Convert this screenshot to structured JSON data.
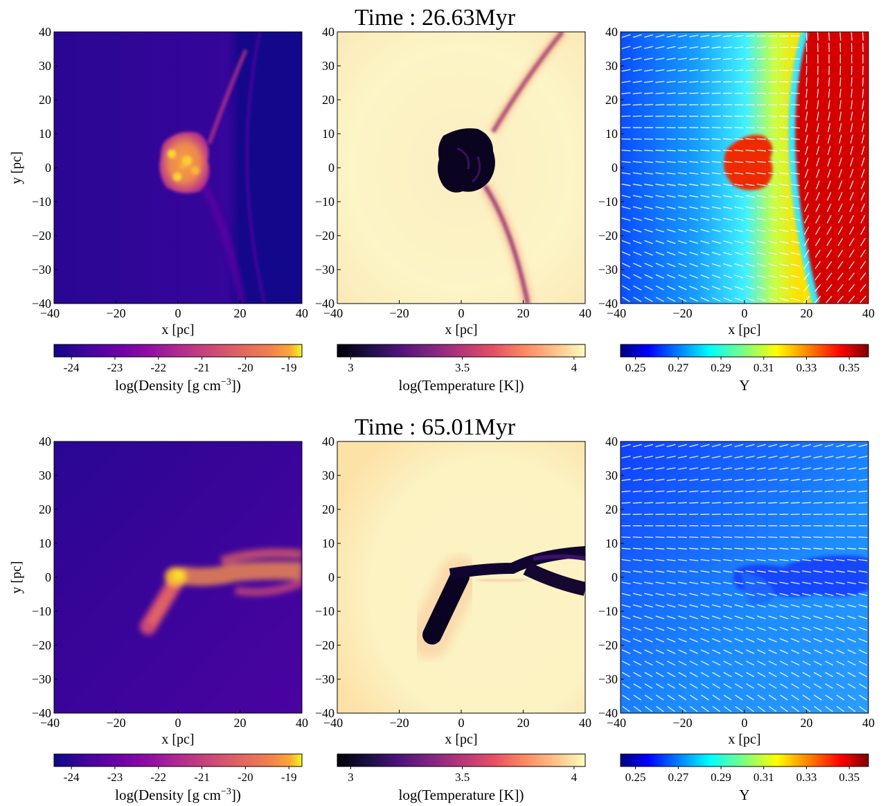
{
  "figure": {
    "rows": [
      {
        "title": "Time : 26.63Myr"
      },
      {
        "title": "Time : 65.01Myr"
      }
    ],
    "panel_axes": {
      "xlabel": "x [pc]",
      "ylabel": "y [pc]",
      "xlim": [
        -40,
        40
      ],
      "ylim": [
        -40,
        40
      ],
      "xticks": [
        -40,
        -20,
        0,
        20,
        40
      ],
      "yticks": [
        -40,
        -30,
        -20,
        -10,
        0,
        10,
        20,
        30,
        40
      ]
    },
    "colorbars": [
      {
        "label": "log(Density [g cm",
        "label_sup": "−3",
        "label_end": "])",
        "ticks": [
          "-24",
          "-23",
          "-22",
          "-21",
          "-20",
          "-19"
        ],
        "range": [
          -24.4,
          -18.7
        ],
        "tick_values": [
          -24,
          -23,
          -22,
          -21,
          -20,
          -19
        ],
        "colormap": "plasma"
      },
      {
        "label": "log(Temperature [K])",
        "label_sup": "",
        "label_end": "",
        "ticks": [
          "3",
          "3.5",
          "4"
        ],
        "range": [
          2.94,
          4.05
        ],
        "tick_values": [
          3,
          3.5,
          4
        ],
        "colormap": "magma"
      },
      {
        "label": "Y",
        "label_sup": "",
        "label_end": "",
        "ticks": [
          "0.25",
          "0.27",
          "0.29",
          "0.31",
          "0.33",
          "0.35"
        ],
        "range": [
          0.243,
          0.359
        ],
        "tick_values": [
          0.25,
          0.27,
          0.29,
          0.31,
          0.33,
          0.35
        ],
        "colormap": "jet"
      }
    ]
  },
  "chart_data": [
    {
      "type": "heatmap",
      "row": 0,
      "panel": "density",
      "title": "Time : 26.63Myr",
      "xlabel": "x [pc]",
      "ylabel": "y [pc]",
      "xlim": [
        -40,
        40
      ],
      "ylim": [
        -40,
        40
      ],
      "colorbar_label": "log(Density [g cm^-3])",
      "colorbar_range": [
        -24.4,
        -18.7
      ],
      "features": {
        "background_value": -23.8,
        "clump_center_pc": [
          3,
          0
        ],
        "clump_radius_pc": 13,
        "clump_peak_value": -19.2
      }
    },
    {
      "type": "heatmap",
      "row": 0,
      "panel": "temperature",
      "title": "Time : 26.63Myr",
      "xlabel": "x [pc]",
      "ylabel": "",
      "xlim": [
        -40,
        40
      ],
      "ylim": [
        -40,
        40
      ],
      "colorbar_label": "log(Temperature [K])",
      "colorbar_range": [
        2.94,
        4.05
      ],
      "features": {
        "background_value": 4.02,
        "clump_value": 2.96
      }
    },
    {
      "type": "heatmap",
      "row": 0,
      "panel": "helium_Y",
      "title": "Time : 26.63Myr",
      "xlabel": "x [pc]",
      "ylabel": "",
      "xlim": [
        -40,
        40
      ],
      "ylim": [
        -40,
        40
      ],
      "colorbar_label": "Y",
      "colorbar_range": [
        0.243,
        0.359
      ],
      "features": {
        "left_value": 0.255,
        "right_of_front_value": 0.355,
        "clump_value": 0.345,
        "vector_field": true
      }
    },
    {
      "type": "heatmap",
      "row": 1,
      "panel": "density",
      "title": "Time : 65.01Myr",
      "xlabel": "x [pc]",
      "ylabel": "y [pc]",
      "xlim": [
        -40,
        40
      ],
      "ylim": [
        -40,
        40
      ],
      "colorbar_label": "log(Density [g cm^-3])",
      "colorbar_range": [
        -24.4,
        -18.7
      ],
      "features": {
        "background_value": -23.8,
        "clump_center_pc": [
          0,
          0
        ],
        "tail_end_pc": [
          -11,
          -18
        ],
        "stream_end_pc": [
          40,
          2
        ],
        "clump_peak_value": -19.0
      }
    },
    {
      "type": "heatmap",
      "row": 1,
      "panel": "temperature",
      "title": "Time : 65.01Myr",
      "xlabel": "x [pc]",
      "ylabel": "",
      "xlim": [
        -40,
        40
      ],
      "ylim": [
        -40,
        40
      ],
      "colorbar_label": "log(Temperature [K])",
      "colorbar_range": [
        2.94,
        4.05
      ],
      "features": {
        "background_value": 4.02,
        "clump_value": 2.96
      }
    },
    {
      "type": "heatmap",
      "row": 1,
      "panel": "helium_Y",
      "title": "Time : 65.01Myr",
      "xlabel": "x [pc]",
      "ylabel": "",
      "xlim": [
        -40,
        40
      ],
      "ylim": [
        -40,
        40
      ],
      "colorbar_label": "Y",
      "colorbar_range": [
        0.243,
        0.359
      ],
      "features": {
        "background_value": 0.258,
        "clump_value": 0.247,
        "vector_field": true
      }
    }
  ]
}
